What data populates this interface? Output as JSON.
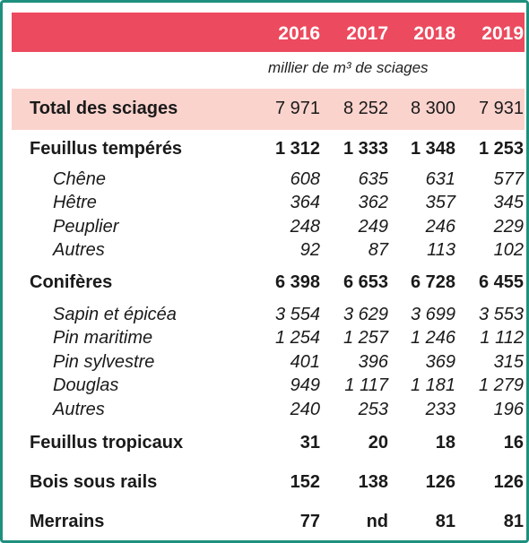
{
  "years": [
    "2016",
    "2017",
    "2018",
    "2019"
  ],
  "unit": "millier de m³ de sciages",
  "colors": {
    "header": "#ec4a5e",
    "total_band": "#fbd3cd",
    "border": "#1f8f7e"
  },
  "rows": [
    {
      "label": "Total des sciages",
      "values": [
        "7 971",
        "8 252",
        "8 300",
        "7 931"
      ]
    },
    {
      "label": "Feuillus tempérés",
      "values": [
        "1 312",
        "1 333",
        "1 348",
        "1 253"
      ]
    },
    {
      "label": "Chêne",
      "values": [
        "608",
        "635",
        "631",
        "577"
      ]
    },
    {
      "label": "Hêtre",
      "values": [
        "364",
        "362",
        "357",
        "345"
      ]
    },
    {
      "label": "Peuplier",
      "values": [
        "248",
        "249",
        "246",
        "229"
      ]
    },
    {
      "label": "Autres",
      "values": [
        "92",
        "87",
        "113",
        "102"
      ]
    },
    {
      "label": "Conifères",
      "values": [
        "6 398",
        "6 653",
        "6 728",
        "6 455"
      ]
    },
    {
      "label": "Sapin et épicéa",
      "values": [
        "3 554",
        "3 629",
        "3 699",
        "3 553"
      ]
    },
    {
      "label": "Pin maritime",
      "values": [
        "1 254",
        "1 257",
        "1 246",
        "1 112"
      ]
    },
    {
      "label": "Pin sylvestre",
      "values": [
        "401",
        "396",
        "369",
        "315"
      ]
    },
    {
      "label": "Douglas",
      "values": [
        "949",
        "1 117",
        "1 181",
        "1 279"
      ]
    },
    {
      "label": "Autres",
      "values": [
        "240",
        "253",
        "233",
        "196"
      ]
    },
    {
      "label": "Feuillus tropicaux",
      "values": [
        "31",
        "20",
        "18",
        "16"
      ]
    },
    {
      "label": "Bois sous rails",
      "values": [
        "152",
        "138",
        "126",
        "126"
      ]
    },
    {
      "label": "Merrains",
      "values": [
        "77",
        "nd",
        "81",
        "81"
      ]
    }
  ]
}
